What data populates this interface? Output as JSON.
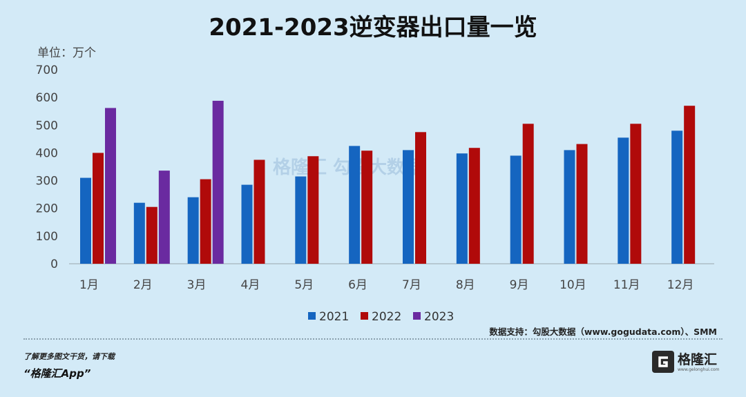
{
  "title": "2021-2023逆变器出口量一览",
  "unit_label": "单位：万个",
  "source": "数据支持：勾股大数据（www.gogudata.com）、SMM",
  "promo_line1": "了解更多图文干货，请下载",
  "promo_line2": "“格隆汇App”",
  "logo_name": "格隆汇",
  "logo_url": "www.gelonghui.com",
  "watermark": "格隆汇   勾股大数据",
  "colors": {
    "2021": "#1565c0",
    "2022": "#b00a0a",
    "2023": "#6a2aa0"
  },
  "chart_data": {
    "type": "bar",
    "categories": [
      "1月",
      "2月",
      "3月",
      "4月",
      "5月",
      "6月",
      "7月",
      "8月",
      "9月",
      "10月",
      "11月",
      "12月"
    ],
    "series": [
      {
        "name": "2021",
        "values": [
          310,
          220,
          240,
          285,
          315,
          425,
          410,
          398,
          390,
          410,
          455,
          480
        ]
      },
      {
        "name": "2022",
        "values": [
          400,
          205,
          305,
          375,
          388,
          408,
          475,
          418,
          505,
          432,
          505,
          570
        ]
      },
      {
        "name": "2023",
        "values": [
          562,
          336,
          588,
          null,
          null,
          null,
          null,
          null,
          null,
          null,
          null,
          null
        ]
      }
    ],
    "yticks": [
      0,
      100,
      200,
      300,
      400,
      500,
      600,
      700
    ],
    "ylim": [
      0,
      700
    ],
    "legend": "bottom",
    "grid": false
  }
}
